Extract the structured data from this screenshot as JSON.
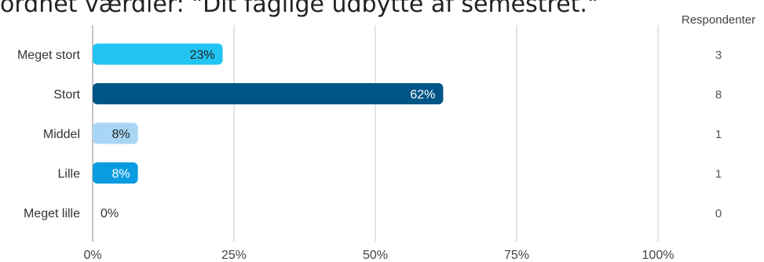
{
  "chart_data": {
    "type": "bar",
    "orientation": "horizontal",
    "title": "ordnet værdier: \"Dit faglige udbytte af semestret.\"",
    "categories": [
      "Meget stort",
      "Stort",
      "Middel",
      "Lille",
      "Meget lille"
    ],
    "values": [
      23,
      62,
      8,
      8,
      0
    ],
    "value_labels": [
      "23%",
      "62%",
      "8%",
      "8%",
      "0%"
    ],
    "xlim": [
      0,
      100
    ],
    "x_ticks": [
      0,
      25,
      50,
      75,
      100
    ],
    "x_tick_labels": [
      "0%",
      "25%",
      "50%",
      "75%",
      "100%"
    ],
    "grid": true,
    "respondents_header": "Respondenter",
    "respondents": [
      "3",
      "8",
      "1",
      "1",
      "0"
    ],
    "colors": [
      "#22c4f2",
      "#005587",
      "#a9d6f5",
      "#0b9be0",
      "#cccccc"
    ],
    "label_colors": [
      "#222222",
      "#ffffff",
      "#222222",
      "#ffffff",
      "#333333"
    ]
  }
}
